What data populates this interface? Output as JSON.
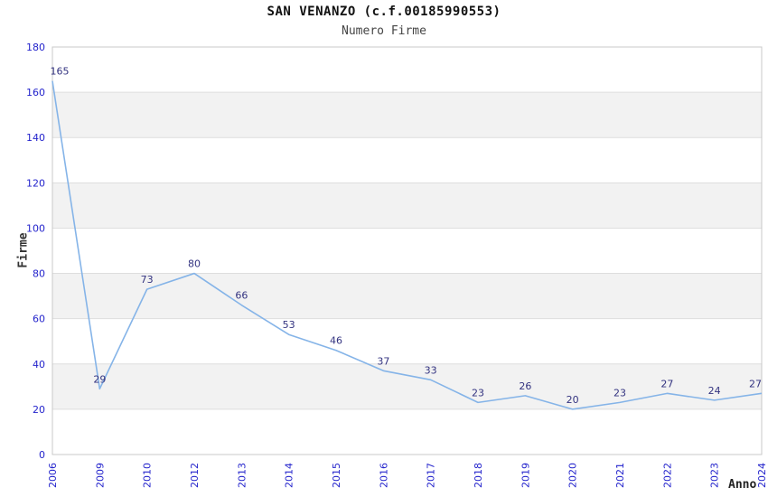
{
  "chart_data": {
    "type": "line",
    "title": "SAN VENANZO (c.f.00185990553)",
    "subtitle": "Numero Firme",
    "xlabel": "Anno",
    "ylabel": "Firme",
    "categories": [
      "2006",
      "2009",
      "2010",
      "2012",
      "2013",
      "2014",
      "2015",
      "2016",
      "2017",
      "2018",
      "2019",
      "2020",
      "2021",
      "2022",
      "2023",
      "2024"
    ],
    "series": [
      {
        "name": "Numero Firme",
        "values": [
          165,
          29,
          73,
          80,
          66,
          53,
          46,
          37,
          33,
          23,
          26,
          20,
          23,
          27,
          24,
          27
        ]
      }
    ],
    "ylim": [
      0,
      180
    ],
    "ytick_step": 20,
    "grid": "alternating-horizontal-bands",
    "band_ranges": [
      [
        20,
        40
      ],
      [
        60,
        80
      ],
      [
        100,
        120
      ],
      [
        140,
        160
      ]
    ],
    "legend_position": "none",
    "point_labels_visible": true,
    "colors": {
      "line": "#85b4e8",
      "tick_label": "#2424cc",
      "point_label": "#333380",
      "band_fill": "#f2f2f2",
      "gridline": "#dedede",
      "axis_frame": "#c8c8c8",
      "title": "#111111",
      "subtitle": "#444444",
      "axis_title": "#333333",
      "background": "#ffffff"
    }
  }
}
